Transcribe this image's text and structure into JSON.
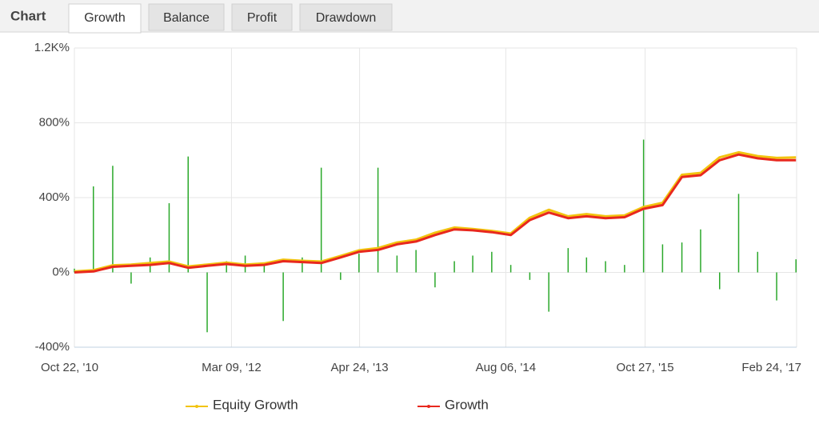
{
  "header": {
    "title": "Chart",
    "tabs": [
      "Growth",
      "Balance",
      "Profit",
      "Drawdown"
    ],
    "active_tab": 0
  },
  "chart_data": {
    "type": "line",
    "x": [
      "2010-10-22",
      "2010-12-22",
      "2011-02-22",
      "2011-04-22",
      "2011-06-22",
      "2011-08-22",
      "2011-10-22",
      "2011-12-22",
      "2012-02-22",
      "2012-04-22",
      "2012-06-22",
      "2012-08-22",
      "2012-10-22",
      "2012-12-22",
      "2013-02-22",
      "2013-04-22",
      "2013-06-22",
      "2013-08-22",
      "2013-10-22",
      "2013-12-22",
      "2014-02-22",
      "2014-04-22",
      "2014-06-22",
      "2014-08-22",
      "2014-10-22",
      "2014-12-22",
      "2015-02-22",
      "2015-04-22",
      "2015-06-22",
      "2015-08-22",
      "2015-10-22",
      "2015-12-22",
      "2016-02-22",
      "2016-04-22",
      "2016-06-22",
      "2016-08-22",
      "2016-10-22",
      "2016-12-22",
      "2017-02-22"
    ],
    "series": [
      {
        "style": "bar",
        "color": "#2aa82a",
        "values": [
          20,
          460,
          570,
          -60,
          80,
          370,
          620,
          -320,
          60,
          90,
          40,
          -260,
          80,
          560,
          -40,
          100,
          560,
          90,
          120,
          -80,
          60,
          90,
          110,
          40,
          -40,
          -210,
          130,
          80,
          60,
          40,
          710,
          150,
          160,
          230,
          -90,
          420,
          110,
          -150,
          70
        ]
      },
      {
        "name": "Equity Growth",
        "color": "#f2c40f",
        "values": [
          5,
          12,
          38,
          42,
          50,
          58,
          32,
          42,
          52,
          42,
          48,
          68,
          62,
          58,
          88,
          118,
          130,
          160,
          175,
          212,
          240,
          232,
          222,
          208,
          292,
          335,
          300,
          312,
          300,
          305,
          350,
          372,
          522,
          532,
          615,
          642,
          622,
          612,
          615
        ]
      },
      {
        "name": "Growth",
        "color": "#e8281e",
        "values": [
          0,
          5,
          30,
          35,
          40,
          50,
          25,
          35,
          45,
          35,
          40,
          60,
          55,
          50,
          80,
          110,
          120,
          150,
          165,
          200,
          230,
          225,
          215,
          200,
          280,
          320,
          290,
          300,
          290,
          295,
          340,
          360,
          510,
          520,
          600,
          630,
          610,
          600,
          600
        ]
      }
    ],
    "xlim": [
      "2010-10-22",
      "2017-02-24"
    ],
    "xticks": [
      {
        "value": "2010-10-22",
        "label": "Oct 22, '10"
      },
      {
        "value": "2012-03-09",
        "label": "Mar 09, '12"
      },
      {
        "value": "2013-04-24",
        "label": "Apr 24, '13"
      },
      {
        "value": "2014-08-06",
        "label": "Aug 06, '14"
      },
      {
        "value": "2015-10-27",
        "label": "Oct 27, '15"
      },
      {
        "value": "2017-02-24",
        "label": "Feb 24, '17"
      }
    ],
    "ylim": [
      -400,
      1200
    ],
    "yticks": [
      {
        "value": -400,
        "label": "-400%"
      },
      {
        "value": 0,
        "label": "0%"
      },
      {
        "value": 400,
        "label": "400%"
      },
      {
        "value": 800,
        "label": "800%"
      },
      {
        "value": 1200,
        "label": "1.2K%"
      }
    ],
    "grid": true
  }
}
